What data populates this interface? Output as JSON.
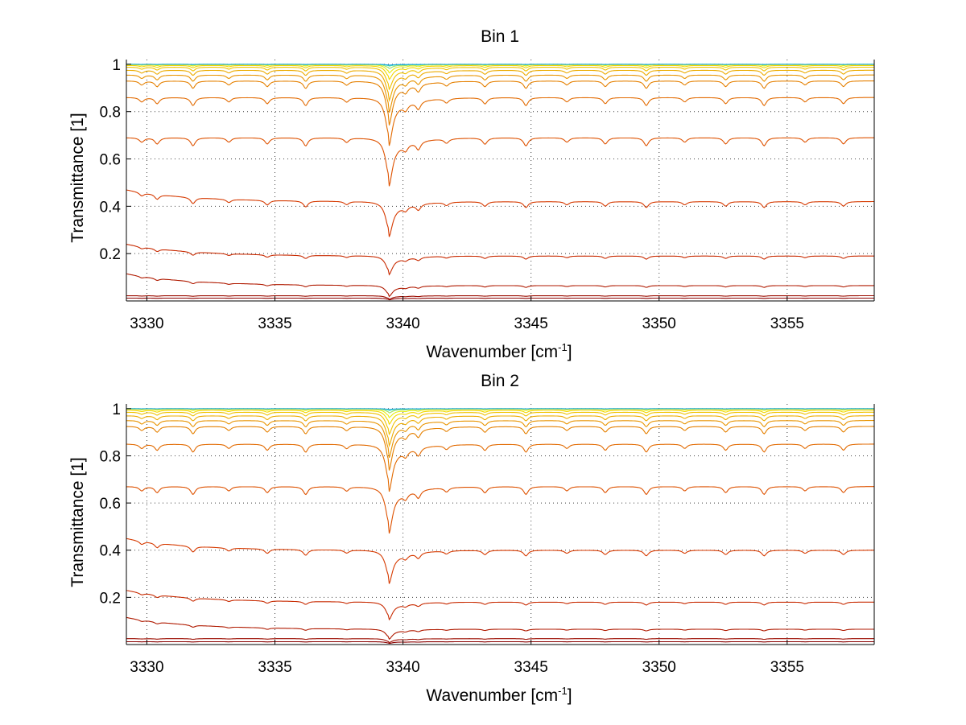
{
  "figure": {
    "background": "#ffffff"
  },
  "chart_data": [
    {
      "type": "line",
      "title": "Bin 1",
      "xlabel": "Wavenumber [cm",
      "xlabel_sup": "-1",
      "xlabel_tail": "]",
      "ylabel": "Transmittance [1]",
      "xlim": [
        3329.2,
        3358.4
      ],
      "ylim": [
        0.0,
        1.02
      ],
      "xticks": [
        3330,
        3335,
        3340,
        3345,
        3350,
        3355
      ],
      "xtick_labels": [
        "3330",
        "3335",
        "3340",
        "3345",
        "3350",
        "3355"
      ],
      "yticks": [
        0.2,
        0.4,
        0.6,
        0.8,
        1.0
      ],
      "ytick_labels": [
        "0.2",
        "0.4",
        "0.6",
        "0.8",
        "1"
      ],
      "grid": true,
      "strong_line": {
        "center": 3339.45,
        "width": 0.16,
        "tail": 0.9
      },
      "weak_lines": [
        3329.8,
        3330.4,
        3331.8,
        3333.2,
        3334.7,
        3336.2,
        3337.8,
        3340.1,
        3340.6,
        3341.7,
        3343.2,
        3344.8,
        3346.4,
        3347.9,
        3349.5,
        3351.0,
        3352.6,
        3354.1,
        3355.7,
        3357.2
      ],
      "series": [
        {
          "base": 0.012,
          "depth": 0.5,
          "color": "#8b0000"
        },
        {
          "base": 0.022,
          "depth": 0.55,
          "color": "#9c0d00"
        },
        {
          "base": 0.065,
          "depth": 0.6,
          "color": "#b01a00"
        },
        {
          "base": 0.19,
          "depth": 0.35,
          "color": "#c82a00"
        },
        {
          "base": 0.42,
          "depth": 0.3,
          "color": "#d63a00"
        },
        {
          "base": 0.69,
          "depth": 0.25,
          "color": "#de5200"
        },
        {
          "base": 0.86,
          "depth": 0.2,
          "color": "#e26a00"
        },
        {
          "base": 0.93,
          "depth": 0.17,
          "color": "#e58000"
        },
        {
          "base": 0.955,
          "depth": 0.14,
          "color": "#e89400"
        },
        {
          "base": 0.975,
          "depth": 0.11,
          "color": "#ecab00"
        },
        {
          "base": 0.988,
          "depth": 0.08,
          "color": "#f0c200"
        },
        {
          "base": 0.995,
          "depth": 0.05,
          "color": "#f2d800"
        },
        {
          "base": 0.999,
          "depth": 0.03,
          "color": "#e6ee10"
        },
        {
          "base": 1.0,
          "depth": 0.015,
          "color": "#9fe060"
        },
        {
          "base": 1.0,
          "depth": 0.006,
          "color": "#40d8b0"
        },
        {
          "base": 1.0,
          "depth": 0.003,
          "color": "#1ca8e0"
        }
      ]
    },
    {
      "type": "line",
      "title": "Bin 2",
      "xlabel": "Wavenumber [cm",
      "xlabel_sup": "-1",
      "xlabel_tail": "]",
      "ylabel": "Transmittance [1]",
      "xlim": [
        3329.2,
        3358.4
      ],
      "ylim": [
        0.0,
        1.02
      ],
      "xticks": [
        3330,
        3335,
        3340,
        3345,
        3350,
        3355
      ],
      "xtick_labels": [
        "3330",
        "3335",
        "3340",
        "3345",
        "3350",
        "3355"
      ],
      "yticks": [
        0.2,
        0.4,
        0.6,
        0.8,
        1.0
      ],
      "ytick_labels": [
        "0.2",
        "0.4",
        "0.6",
        "0.8",
        "1"
      ],
      "grid": true,
      "strong_line": {
        "center": 3339.45,
        "width": 0.16,
        "tail": 0.9
      },
      "weak_lines": [
        3329.8,
        3330.4,
        3331.8,
        3333.2,
        3334.7,
        3336.2,
        3337.8,
        3340.1,
        3340.6,
        3341.7,
        3343.2,
        3344.8,
        3346.4,
        3347.9,
        3349.5,
        3351.0,
        3352.6,
        3354.1,
        3355.7,
        3357.2
      ],
      "series": [
        {
          "base": 0.012,
          "depth": 0.5,
          "color": "#8b0000"
        },
        {
          "base": 0.025,
          "depth": 0.55,
          "color": "#9c0d00"
        },
        {
          "base": 0.065,
          "depth": 0.55,
          "color": "#b01a00"
        },
        {
          "base": 0.18,
          "depth": 0.35,
          "color": "#c82a00"
        },
        {
          "base": 0.4,
          "depth": 0.3,
          "color": "#d63a00"
        },
        {
          "base": 0.67,
          "depth": 0.25,
          "color": "#de5200"
        },
        {
          "base": 0.85,
          "depth": 0.2,
          "color": "#e26a00"
        },
        {
          "base": 0.925,
          "depth": 0.17,
          "color": "#e58000"
        },
        {
          "base": 0.95,
          "depth": 0.14,
          "color": "#e89400"
        },
        {
          "base": 0.97,
          "depth": 0.11,
          "color": "#ecab00"
        },
        {
          "base": 0.985,
          "depth": 0.08,
          "color": "#f0c200"
        },
        {
          "base": 0.993,
          "depth": 0.05,
          "color": "#f2d800"
        },
        {
          "base": 0.998,
          "depth": 0.03,
          "color": "#e6ee10"
        },
        {
          "base": 1.0,
          "depth": 0.015,
          "color": "#9fe060"
        },
        {
          "base": 1.0,
          "depth": 0.006,
          "color": "#40d8b0"
        },
        {
          "base": 1.0,
          "depth": 0.003,
          "color": "#1ca8e0"
        }
      ]
    }
  ]
}
